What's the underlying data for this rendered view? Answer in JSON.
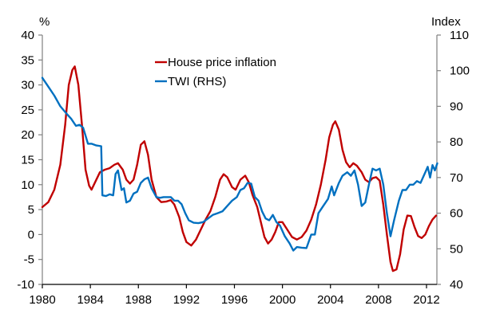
{
  "chart_data": {
    "type": "line",
    "title": "",
    "xlabel": "",
    "ylabel_left": "%",
    "ylabel_right": "Index",
    "xlim": [
      1980,
      2012.9
    ],
    "ylim_left": [
      -10,
      40
    ],
    "ylim_right": [
      40,
      110
    ],
    "x_ticks": [
      "1980",
      "1984",
      "1988",
      "1992",
      "1996",
      "2000",
      "2004",
      "2008",
      "2012"
    ],
    "y_ticks_left": [
      "-10",
      "-5",
      "0",
      "5",
      "10",
      "15",
      "20",
      "25",
      "30",
      "35",
      "40"
    ],
    "y_ticks_right": [
      "40",
      "50",
      "60",
      "70",
      "80",
      "90",
      "100",
      "110"
    ],
    "grid": false,
    "legend_position": "top-center",
    "series": [
      {
        "name": "House price inflation",
        "axis": "left",
        "color": "#c00000",
        "points": [
          [
            1980.0,
            5.5
          ],
          [
            1980.5,
            6.5
          ],
          [
            1981.0,
            9.0
          ],
          [
            1981.5,
            14.0
          ],
          [
            1981.9,
            22.0
          ],
          [
            1982.2,
            30.0
          ],
          [
            1982.5,
            33.0
          ],
          [
            1982.7,
            33.7
          ],
          [
            1983.0,
            30.0
          ],
          [
            1983.3,
            22.0
          ],
          [
            1983.6,
            13.0
          ],
          [
            1983.9,
            9.8
          ],
          [
            1984.1,
            9.0
          ],
          [
            1984.4,
            10.5
          ],
          [
            1984.8,
            12.5
          ],
          [
            1985.2,
            13.0
          ],
          [
            1985.6,
            13.3
          ],
          [
            1986.0,
            14.0
          ],
          [
            1986.3,
            14.3
          ],
          [
            1986.7,
            13.0
          ],
          [
            1987.0,
            11.0
          ],
          [
            1987.3,
            10.2
          ],
          [
            1987.6,
            11.0
          ],
          [
            1987.9,
            14.0
          ],
          [
            1988.2,
            18.0
          ],
          [
            1988.5,
            18.7
          ],
          [
            1988.8,
            16.0
          ],
          [
            1989.1,
            11.0
          ],
          [
            1989.5,
            7.5
          ],
          [
            1989.9,
            6.5
          ],
          [
            1990.3,
            6.6
          ],
          [
            1990.7,
            6.9
          ],
          [
            1991.0,
            6.0
          ],
          [
            1991.4,
            3.5
          ],
          [
            1991.7,
            0.5
          ],
          [
            1992.0,
            -1.5
          ],
          [
            1992.4,
            -2.2
          ],
          [
            1992.8,
            -1.0
          ],
          [
            1993.2,
            1.0
          ],
          [
            1993.6,
            3.0
          ],
          [
            1994.0,
            4.7
          ],
          [
            1994.4,
            7.5
          ],
          [
            1994.8,
            11.0
          ],
          [
            1995.1,
            12.1
          ],
          [
            1995.4,
            11.5
          ],
          [
            1995.8,
            9.5
          ],
          [
            1996.1,
            9.0
          ],
          [
            1996.5,
            11.0
          ],
          [
            1996.9,
            11.8
          ],
          [
            1997.2,
            10.5
          ],
          [
            1997.5,
            8.0
          ],
          [
            1997.9,
            5.5
          ],
          [
            1998.2,
            2.5
          ],
          [
            1998.5,
            -0.5
          ],
          [
            1998.8,
            -1.8
          ],
          [
            1999.1,
            -1.0
          ],
          [
            1999.4,
            0.5
          ],
          [
            1999.7,
            2.5
          ],
          [
            2000.0,
            2.5
          ],
          [
            2000.4,
            1.0
          ],
          [
            2000.8,
            -0.5
          ],
          [
            2001.2,
            -1.0
          ],
          [
            2001.6,
            -0.5
          ],
          [
            2002.0,
            0.8
          ],
          [
            2002.4,
            3.0
          ],
          [
            2002.8,
            6.0
          ],
          [
            2003.2,
            10.0
          ],
          [
            2003.6,
            15.0
          ],
          [
            2003.9,
            19.5
          ],
          [
            2004.2,
            22.0
          ],
          [
            2004.4,
            22.7
          ],
          [
            2004.7,
            21.0
          ],
          [
            2005.0,
            17.0
          ],
          [
            2005.3,
            14.5
          ],
          [
            2005.6,
            13.5
          ],
          [
            2005.9,
            14.3
          ],
          [
            2006.2,
            13.8
          ],
          [
            2006.6,
            12.5
          ],
          [
            2006.9,
            11.0
          ],
          [
            2007.2,
            10.5
          ],
          [
            2007.5,
            11.3
          ],
          [
            2007.8,
            11.5
          ],
          [
            2008.1,
            10.8
          ],
          [
            2008.4,
            6.0
          ],
          [
            2008.7,
            0.0
          ],
          [
            2009.0,
            -5.5
          ],
          [
            2009.2,
            -7.3
          ],
          [
            2009.5,
            -7.0
          ],
          [
            2009.8,
            -4.0
          ],
          [
            2010.1,
            1.0
          ],
          [
            2010.4,
            3.8
          ],
          [
            2010.7,
            3.7
          ],
          [
            2011.0,
            1.5
          ],
          [
            2011.3,
            -0.3
          ],
          [
            2011.6,
            -0.7
          ],
          [
            2011.9,
            0.0
          ],
          [
            2012.2,
            1.7
          ],
          [
            2012.5,
            3.0
          ],
          [
            2012.8,
            3.8
          ]
        ]
      },
      {
        "name": "TWI (RHS)",
        "axis": "right",
        "color": "#0070c0",
        "points": [
          [
            1980.0,
            98.0
          ],
          [
            1980.5,
            95.5
          ],
          [
            1981.0,
            93.0
          ],
          [
            1981.5,
            90.0
          ],
          [
            1982.0,
            88.0
          ],
          [
            1982.4,
            86.5
          ],
          [
            1982.8,
            84.5
          ],
          [
            1983.1,
            84.8
          ],
          [
            1983.4,
            84.0
          ],
          [
            1983.8,
            79.5
          ],
          [
            1984.1,
            79.5
          ],
          [
            1984.5,
            79.0
          ],
          [
            1984.9,
            78.8
          ],
          [
            1985.0,
            65.0
          ],
          [
            1985.3,
            64.8
          ],
          [
            1985.6,
            65.3
          ],
          [
            1985.9,
            65.0
          ],
          [
            1986.1,
            71.0
          ],
          [
            1986.3,
            72.0
          ],
          [
            1986.6,
            66.5
          ],
          [
            1986.8,
            67.0
          ],
          [
            1987.0,
            63.0
          ],
          [
            1987.3,
            63.5
          ],
          [
            1987.6,
            65.5
          ],
          [
            1987.9,
            66.0
          ],
          [
            1988.2,
            68.5
          ],
          [
            1988.5,
            69.5
          ],
          [
            1988.8,
            70.0
          ],
          [
            1989.1,
            67.0
          ],
          [
            1989.5,
            64.5
          ],
          [
            1989.8,
            64.3
          ],
          [
            1990.1,
            64.5
          ],
          [
            1990.4,
            64.5
          ],
          [
            1990.7,
            64.5
          ],
          [
            1991.0,
            63.5
          ],
          [
            1991.3,
            63.5
          ],
          [
            1991.6,
            62.5
          ],
          [
            1991.9,
            60.0
          ],
          [
            1992.2,
            58.0
          ],
          [
            1992.6,
            57.3
          ],
          [
            1993.0,
            57.2
          ],
          [
            1993.4,
            57.5
          ],
          [
            1993.8,
            58.5
          ],
          [
            1994.2,
            59.5
          ],
          [
            1994.6,
            60.0
          ],
          [
            1995.0,
            60.5
          ],
          [
            1995.4,
            62.0
          ],
          [
            1995.8,
            63.5
          ],
          [
            1996.2,
            64.5
          ],
          [
            1996.5,
            66.5
          ],
          [
            1996.8,
            67.0
          ],
          [
            1997.1,
            68.5
          ],
          [
            1997.4,
            68.3
          ],
          [
            1997.7,
            64.5
          ],
          [
            1998.0,
            63.5
          ],
          [
            1998.3,
            60.5
          ],
          [
            1998.6,
            58.5
          ],
          [
            1998.9,
            58.0
          ],
          [
            1999.2,
            59.5
          ],
          [
            1999.5,
            57.5
          ],
          [
            1999.8,
            56.5
          ],
          [
            2000.2,
            53.5
          ],
          [
            2000.6,
            51.5
          ],
          [
            2000.9,
            49.5
          ],
          [
            2001.2,
            50.5
          ],
          [
            2001.6,
            50.3
          ],
          [
            2002.0,
            50.2
          ],
          [
            2002.4,
            54.0
          ],
          [
            2002.7,
            54.0
          ],
          [
            2003.0,
            60.0
          ],
          [
            2003.4,
            62.0
          ],
          [
            2003.8,
            64.0
          ],
          [
            2004.1,
            67.5
          ],
          [
            2004.3,
            65.0
          ],
          [
            2004.7,
            68.5
          ],
          [
            2005.0,
            70.5
          ],
          [
            2005.4,
            71.5
          ],
          [
            2005.7,
            70.5
          ],
          [
            2006.0,
            72.0
          ],
          [
            2006.3,
            68.0
          ],
          [
            2006.6,
            62.0
          ],
          [
            2006.9,
            63.0
          ],
          [
            2007.2,
            68.0
          ],
          [
            2007.5,
            72.5
          ],
          [
            2007.8,
            72.0
          ],
          [
            2008.1,
            72.5
          ],
          [
            2008.4,
            68.0
          ],
          [
            2008.7,
            60.0
          ],
          [
            2009.0,
            53.5
          ],
          [
            2009.3,
            58.0
          ],
          [
            2009.7,
            63.5
          ],
          [
            2010.0,
            66.5
          ],
          [
            2010.3,
            66.5
          ],
          [
            2010.6,
            68.0
          ],
          [
            2010.9,
            68.0
          ],
          [
            2011.2,
            69.0
          ],
          [
            2011.5,
            68.5
          ],
          [
            2011.9,
            71.5
          ],
          [
            2012.1,
            73.0
          ],
          [
            2012.3,
            70.0
          ],
          [
            2012.5,
            73.5
          ],
          [
            2012.7,
            72.0
          ],
          [
            2012.9,
            74.0
          ]
        ]
      }
    ]
  }
}
